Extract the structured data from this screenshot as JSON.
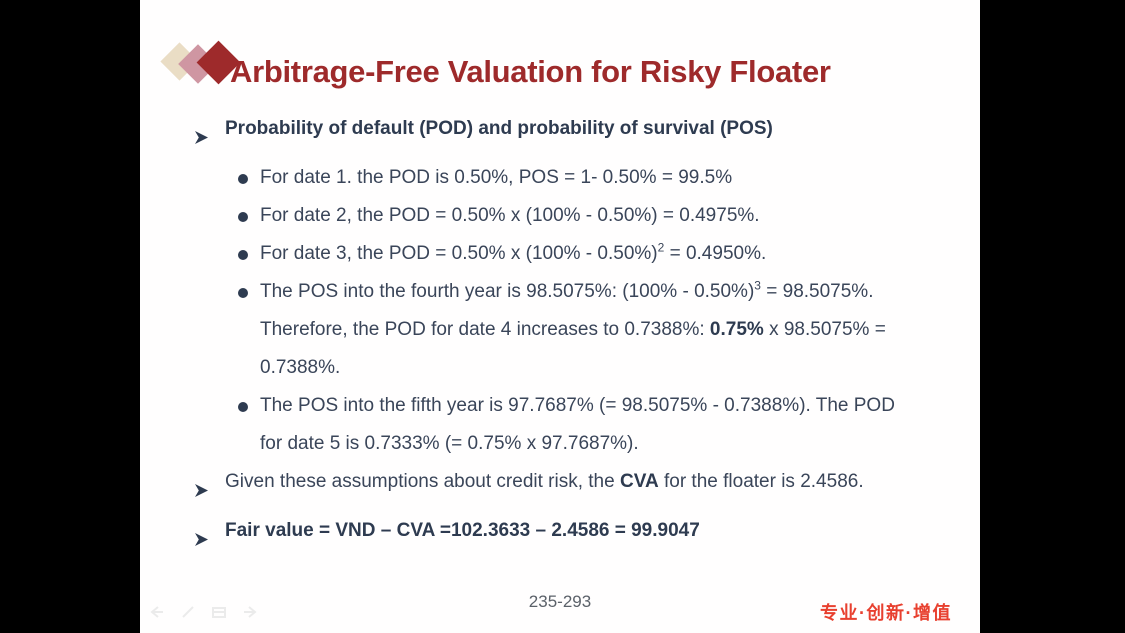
{
  "slide": {
    "title": "Arbitrage-Free Valuation for Risky Floater",
    "colors": {
      "title_red": "#9e2a2b",
      "heading_navy": "#2e3b50",
      "body_navy": "#3a4559",
      "diamond_cream": "#eaddc5",
      "diamond_mauve": "#cf96a2",
      "diamond_red": "#9e2a2b",
      "brand_red": "#e8402f",
      "page_gray": "#5b6169",
      "letterbox_black": "#000000"
    },
    "icons": {
      "level1_bullet": "arrowhead-icon",
      "level2_bullet": "dot-icon",
      "title_mark": "triple-diamond-icon",
      "nav": [
        "prev-arrow-icon",
        "pen-icon",
        "slides-icon",
        "next-arrow-icon"
      ]
    },
    "bullets": [
      {
        "level": 1,
        "bold": true,
        "segments": [
          {
            "t": "Probability of default (POD) and probability of survival (POS)"
          }
        ]
      },
      {
        "level": 2,
        "segments": [
          {
            "t": "For date 1. the POD is 0.50%, POS = 1- 0.50% = 99.5%"
          }
        ]
      },
      {
        "level": 2,
        "segments": [
          {
            "t": "For date 2, the POD = 0.50% x (100% - 0.50%) = 0.4975%."
          }
        ]
      },
      {
        "level": 2,
        "segments": [
          {
            "t": "For date 3, the POD = 0.50% x (100% - 0.50%)"
          },
          {
            "t": "2",
            "sup": true
          },
          {
            "t": " = 0.4950%."
          }
        ]
      },
      {
        "level": 2,
        "segments": [
          {
            "t": "The POS into the fourth year is 98.5075%: (100% - 0.50%)"
          },
          {
            "t": "3",
            "sup": true
          },
          {
            "t": " = 98.5075%. Therefore, the POD for date 4 increases to 0.7388%: "
          },
          {
            "t": "0.75%",
            "b": true
          },
          {
            "t": " x 98.5075% = 0.7388%."
          }
        ]
      },
      {
        "level": 2,
        "segments": [
          {
            "t": "The POS into the fifth year is 97.7687% (= 98.5075% - 0.7388%). The POD for date 5 is 0.7333% (= 0.75% x 97.7687%)."
          }
        ]
      },
      {
        "level": 1,
        "segments": [
          {
            "t": "Given these assumptions about credit risk, the "
          },
          {
            "t": "CVA",
            "b": true
          },
          {
            "t": " for the floater is 2.4586."
          }
        ]
      },
      {
        "level": 1,
        "bold": true,
        "segments": [
          {
            "t": "Fair value = VND – CVA =102.3633 – 2.4586 = 99.9047"
          }
        ]
      }
    ],
    "footer": {
      "page_number": "235-293",
      "brand_text": "专业·创新·增值"
    }
  }
}
